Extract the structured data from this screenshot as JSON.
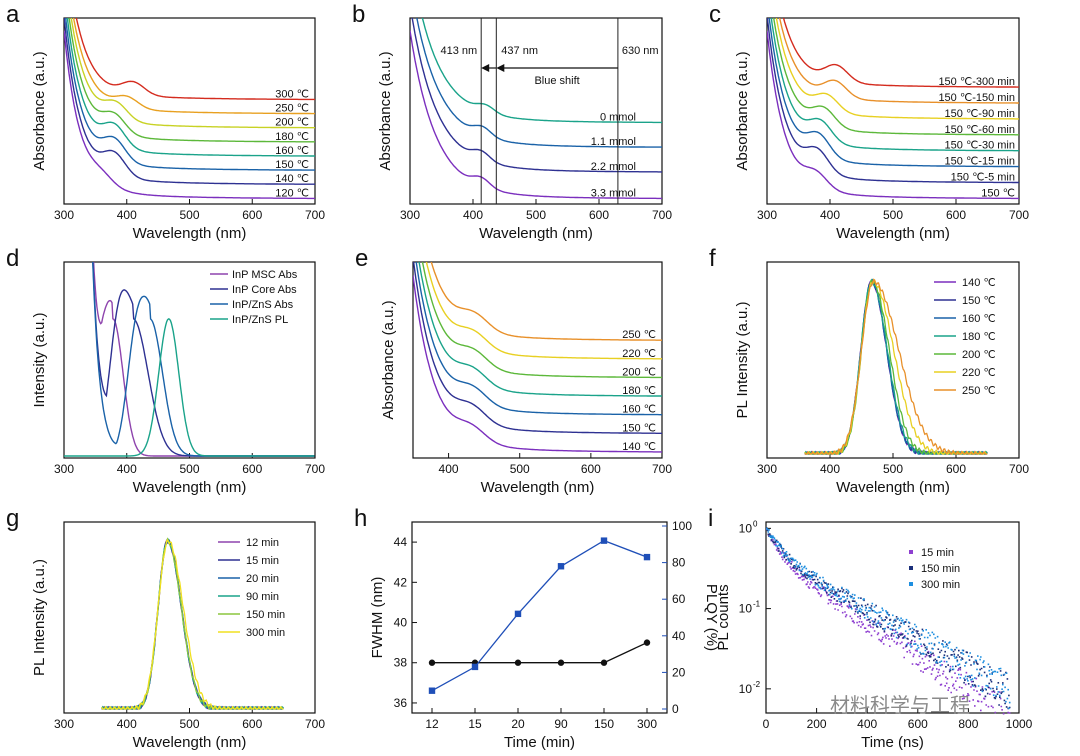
{
  "palette": [
    "#6a0dad",
    "#2e3192",
    "#1a62a8",
    "#1a8c9a",
    "#1aa67a",
    "#52b83a",
    "#a8cc2a",
    "#e8d022",
    "#e8902a",
    "#d42b1e"
  ],
  "watermark": "材料科学与工程",
  "chart_data": [
    {
      "panel": "a",
      "type": "line",
      "xlabel": "Wavelength (nm)",
      "ylabel": "Absorbance (a.u.)",
      "xlim": [
        300,
        700
      ],
      "xticks": [
        300,
        400,
        500,
        600,
        700
      ],
      "series": [
        {
          "name": "120 ℃",
          "tail": 0.03,
          "peak": 360,
          "amp": 0.05,
          "color": "#7b2fbe"
        },
        {
          "name": "140 ℃",
          "tail": 0.11,
          "peak": 380,
          "amp": 0.12,
          "color": "#2e3192"
        },
        {
          "name": "150 ℃",
          "tail": 0.19,
          "peak": 380,
          "amp": 0.12,
          "color": "#1a62a8"
        },
        {
          "name": "160 ℃",
          "tail": 0.27,
          "peak": 380,
          "amp": 0.12,
          "color": "#1aa38a"
        },
        {
          "name": "180 ℃",
          "tail": 0.35,
          "peak": 380,
          "amp": 0.1,
          "color": "#5cb83a"
        },
        {
          "name": "200 ℃",
          "tail": 0.43,
          "peak": 383,
          "amp": 0.09,
          "color": "#c8d224"
        },
        {
          "name": "250 ℃",
          "tail": 0.51,
          "peak": 400,
          "amp": 0.06,
          "color": "#e8a020"
        },
        {
          "name": "300 ℃",
          "tail": 0.59,
          "peak": 410,
          "amp": 0.07,
          "color": "#d42b1e"
        }
      ]
    },
    {
      "panel": "b",
      "type": "line",
      "xlabel": "Wavelength (nm)",
      "ylabel": "Absorbance (a.u.)",
      "xlim": [
        300,
        700
      ],
      "xticks": [
        300,
        400,
        500,
        600,
        700
      ],
      "series": [
        {
          "name": "3.3 mmol",
          "tail": 0.03,
          "peak": 413,
          "amp": 0.05,
          "color": "#7b2fbe"
        },
        {
          "name": "2.2 mmol",
          "tail": 0.18,
          "peak": 413,
          "amp": 0.05,
          "color": "#2e3192"
        },
        {
          "name": "1.1 mmol",
          "tail": 0.32,
          "peak": 415,
          "amp": 0.05,
          "color": "#1a62a8"
        },
        {
          "name": "0 mmol",
          "tail": 0.46,
          "peak": 420,
          "amp": 0.04,
          "color": "#1aa38a"
        }
      ],
      "vlines": [
        413,
        437,
        630
      ],
      "annotations": {
        "l413": "413 nm",
        "l437": "437 nm",
        "l630": "630 nm",
        "shift": "Blue shift"
      }
    },
    {
      "panel": "c",
      "type": "line",
      "xlabel": "Wavelength (nm)",
      "ylabel": "Absorbance (a.u.)",
      "xlim": [
        300,
        700
      ],
      "xticks": [
        300,
        400,
        500,
        600,
        700
      ],
      "series": [
        {
          "name": "150 ℃",
          "tail": 0.03,
          "peak": 378,
          "amp": 0.08,
          "color": "#7b2fbe"
        },
        {
          "name": "150 ℃-5 min",
          "tail": 0.12,
          "peak": 380,
          "amp": 0.12,
          "color": "#2e3192"
        },
        {
          "name": "150 ℃-15 min",
          "tail": 0.21,
          "peak": 382,
          "amp": 0.12,
          "color": "#1a62a8"
        },
        {
          "name": "150 ℃-30 min",
          "tail": 0.3,
          "peak": 385,
          "amp": 0.11,
          "color": "#1aa38a"
        },
        {
          "name": "150 ℃-60 min",
          "tail": 0.39,
          "peak": 390,
          "amp": 0.1,
          "color": "#5cb83a"
        },
        {
          "name": "150 ℃-90 min",
          "tail": 0.48,
          "peak": 395,
          "amp": 0.09,
          "color": "#e8d022"
        },
        {
          "name": "150 ℃-150 min",
          "tail": 0.57,
          "peak": 408,
          "amp": 0.09,
          "color": "#e8902a"
        },
        {
          "name": "150 ℃-300 min",
          "tail": 0.66,
          "peak": 410,
          "amp": 0.09,
          "color": "#d42b1e"
        }
      ]
    },
    {
      "panel": "d",
      "type": "line",
      "xlabel": "Wavelength (nm)",
      "ylabel": "Intensity (a.u.)",
      "xlim": [
        300,
        700
      ],
      "xticks": [
        300,
        400,
        500,
        600,
        700
      ],
      "series": [
        {
          "name": "InP MSC Abs",
          "color": "#8e44ad",
          "peak": 378,
          "width": 16
        },
        {
          "name": "InP Core Abs",
          "color": "#2e3192",
          "peak": 410,
          "width": 24
        },
        {
          "name": "InP/ZnS Abs",
          "color": "#1a62a8",
          "peak": 437,
          "width": 20
        },
        {
          "name": "InP/ZnS PL",
          "color": "#1aa38a",
          "peak": 467,
          "width": 16
        }
      ]
    },
    {
      "panel": "e",
      "type": "line",
      "xlabel": "Wavelength (nm)",
      "ylabel": "Absorbance (a.u.)",
      "xlim": [
        350,
        700
      ],
      "xticks": [
        400,
        500,
        600,
        700
      ],
      "series": [
        {
          "name": "140 ℃",
          "tail": 0.03,
          "peak": 432,
          "amp": 0.07,
          "color": "#7b2fbe"
        },
        {
          "name": "150 ℃",
          "tail": 0.13,
          "peak": 433,
          "amp": 0.08,
          "color": "#2e3192"
        },
        {
          "name": "160 ℃",
          "tail": 0.23,
          "peak": 434,
          "amp": 0.08,
          "color": "#1a62a8"
        },
        {
          "name": "180 ℃",
          "tail": 0.33,
          "peak": 434,
          "amp": 0.08,
          "color": "#1aa38a"
        },
        {
          "name": "200 ℃",
          "tail": 0.43,
          "peak": 435,
          "amp": 0.08,
          "color": "#5cb83a"
        },
        {
          "name": "220 ℃",
          "tail": 0.53,
          "peak": 435,
          "amp": 0.08,
          "color": "#e8d022"
        },
        {
          "name": "250 ℃",
          "tail": 0.63,
          "peak": 436,
          "amp": 0.08,
          "color": "#e8902a"
        }
      ]
    },
    {
      "panel": "f",
      "type": "line",
      "xlabel": "Wavelength (nm)",
      "ylabel": "PL Intensity (a.u.)",
      "xlim": [
        300,
        700
      ],
      "xticks": [
        300,
        400,
        500,
        600,
        700
      ],
      "series": [
        {
          "name": "140 ℃",
          "color": "#7b2fbe",
          "peak": 466,
          "w1": 17,
          "w2": 24
        },
        {
          "name": "150 ℃",
          "color": "#2e3192",
          "peak": 466,
          "w1": 17,
          "w2": 24
        },
        {
          "name": "160 ℃",
          "color": "#1a62a8",
          "peak": 466,
          "w1": 17,
          "w2": 24
        },
        {
          "name": "180 ℃",
          "color": "#1aa38a",
          "peak": 466,
          "w1": 17,
          "w2": 25
        },
        {
          "name": "200 ℃",
          "color": "#5cb83a",
          "peak": 467,
          "w1": 17,
          "w2": 27
        },
        {
          "name": "220 ℃",
          "color": "#e8d022",
          "peak": 468,
          "w1": 18,
          "w2": 33
        },
        {
          "name": "250 ℃",
          "color": "#e8902a",
          "peak": 469,
          "w1": 19,
          "w2": 40
        }
      ]
    },
    {
      "panel": "g",
      "type": "line",
      "xlabel": "Wavelength (nm)",
      "ylabel": "PL Intensity (a.u.)",
      "xlim": [
        300,
        700
      ],
      "xticks": [
        300,
        400,
        500,
        600,
        700
      ],
      "series": [
        {
          "name": "12 min",
          "color": "#8e44ad",
          "peak": 465,
          "w1": 15,
          "w2": 22
        },
        {
          "name": "15 min",
          "color": "#2e3192",
          "peak": 465,
          "w1": 15,
          "w2": 22
        },
        {
          "name": "20 min",
          "color": "#1a62a8",
          "peak": 465,
          "w1": 15,
          "w2": 22
        },
        {
          "name": "90 min",
          "color": "#1aa38a",
          "peak": 465,
          "w1": 15,
          "w2": 22
        },
        {
          "name": "150 min",
          "color": "#8cc63f",
          "peak": 465,
          "w1": 15,
          "w2": 22
        },
        {
          "name": "300 min",
          "color": "#f0e020",
          "peak": 466,
          "w1": 16,
          "w2": 24
        }
      ]
    },
    {
      "panel": "h",
      "type": "line",
      "xlabel": "Time (min)",
      "ylabel": "FWHM (nm)",
      "y2label": "PLQY (%)",
      "categories": [
        "12",
        "15",
        "20",
        "90",
        "150",
        "300"
      ],
      "ylim": [
        35.5,
        45
      ],
      "yticks": [
        36,
        38,
        40,
        42,
        44
      ],
      "y2lim": [
        0,
        100
      ],
      "y2ticks": [
        0,
        20,
        40,
        60,
        80,
        100
      ],
      "series": [
        {
          "name": "FWHM",
          "axis": "left",
          "color": "#111111",
          "values": [
            38,
            38,
            38,
            38,
            38,
            39
          ]
        },
        {
          "name": "PLQY",
          "axis": "right",
          "color": "#1f4fb8",
          "values": [
            10,
            23,
            52,
            78,
            92,
            83
          ]
        }
      ]
    },
    {
      "panel": "i",
      "type": "scatter",
      "xlabel": "Time (ns)",
      "ylabel": "PL counts",
      "xlim": [
        0,
        1000
      ],
      "xticks": [
        0,
        200,
        400,
        600,
        800,
        1000
      ],
      "ylim_log": [
        0.005,
        1.2
      ],
      "ytick_labels": {
        "e0": "10",
        "e1": "10",
        "e2": "10",
        "p0": "0",
        "p1": "-1",
        "p2": "-2"
      },
      "series": [
        {
          "name": "15 min",
          "color": "#8e3fd0",
          "a1": 0.55,
          "t1": 45,
          "a2": 0.45,
          "t2": 210
        },
        {
          "name": "150 min",
          "color": "#1b2f7a",
          "a1": 0.5,
          "t1": 50,
          "a2": 0.5,
          "t2": 240
        },
        {
          "name": "300 min",
          "color": "#1e8fe0",
          "a1": 0.5,
          "t1": 52,
          "a2": 0.5,
          "t2": 245
        }
      ]
    }
  ]
}
